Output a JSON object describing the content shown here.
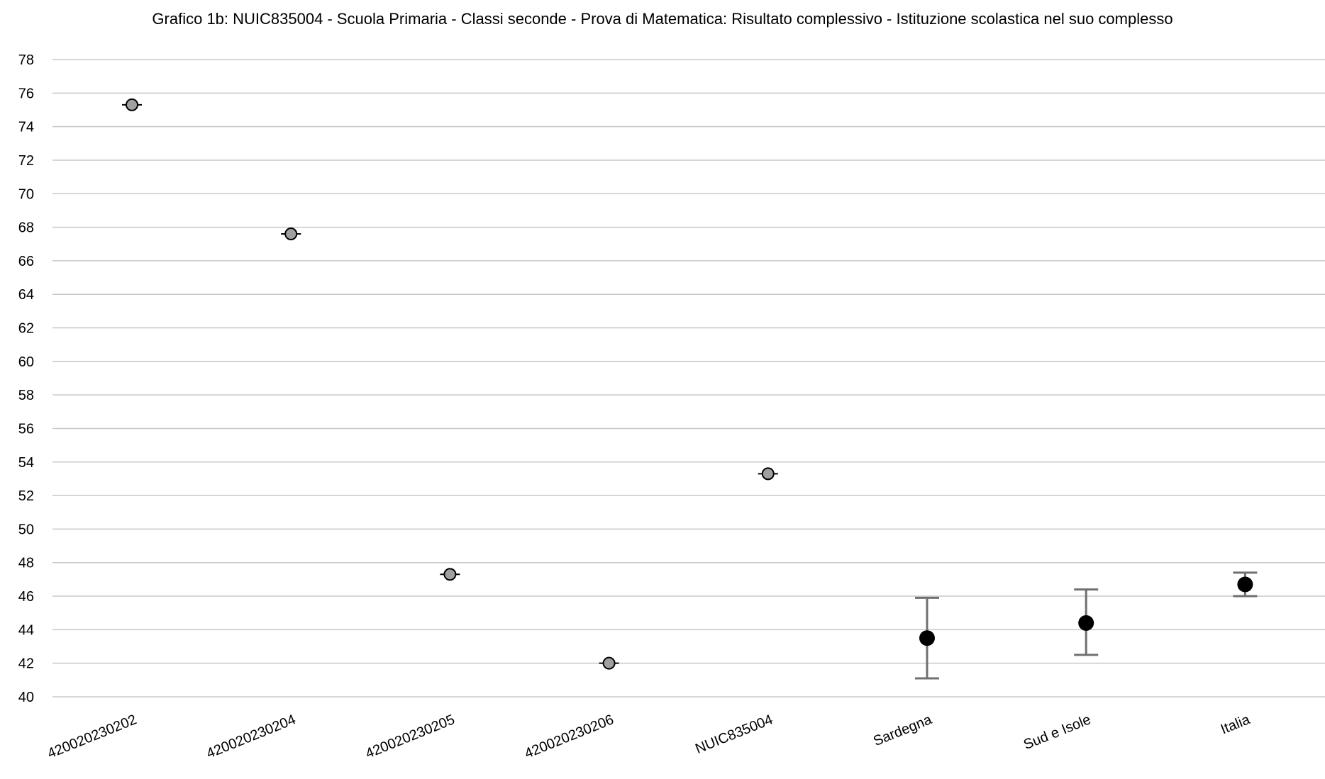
{
  "chart_data": {
    "type": "scatter",
    "title": "Grafico 1b: NUIC835004 - Scuola Primaria - Classi seconde - Prova di Matematica: Risultato complessivo - Istituzione scolastica nel suo complesso",
    "xlabel": "",
    "ylabel": "",
    "ylim": [
      40,
      78
    ],
    "ytick_step": 2,
    "yticks": [
      "40",
      "42",
      "44",
      "46",
      "48",
      "50",
      "52",
      "54",
      "56",
      "58",
      "60",
      "62",
      "64",
      "66",
      "68",
      "70",
      "72",
      "74",
      "76",
      "78"
    ],
    "grid": true,
    "categories": [
      "420020230202",
      "420020230204",
      "420020230205",
      "420020230206",
      "NUIC835004",
      "Sardegna",
      "Sud e Isole",
      "Italia"
    ],
    "values": [
      75.3,
      67.6,
      47.3,
      42.0,
      53.3,
      43.5,
      44.4,
      46.7
    ],
    "error_low": [
      null,
      null,
      null,
      null,
      null,
      41.1,
      42.5,
      46.0
    ],
    "error_high": [
      null,
      null,
      null,
      null,
      null,
      45.9,
      46.4,
      47.4
    ],
    "marker_styles": [
      "hollow",
      "hollow",
      "hollow",
      "hollow",
      "hollow",
      "filled",
      "filled",
      "filled"
    ],
    "colors": {
      "grid": "#c8c8c8",
      "hollow_marker_fill": "#a0a0a0",
      "hollow_marker_stroke": "#000000",
      "filled_marker": "#000000",
      "error_bar": "#707070"
    }
  }
}
